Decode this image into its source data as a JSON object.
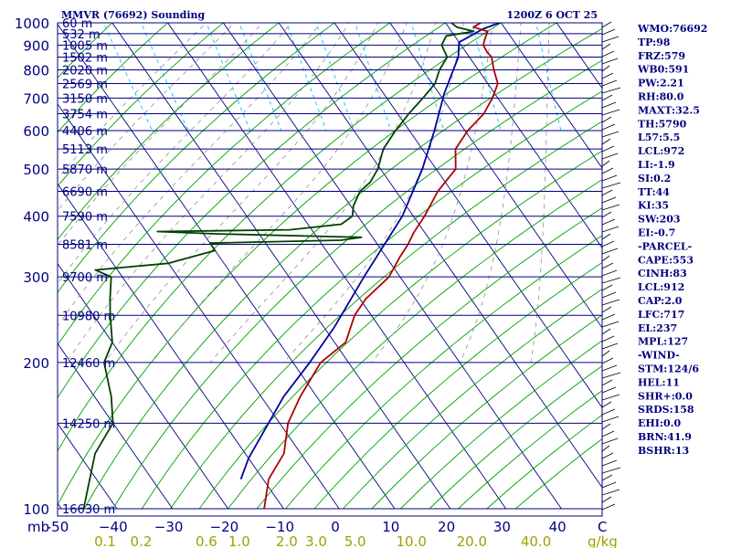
{
  "header": {
    "station": "MMVR (76692) Sounding",
    "time": "1200Z  6 OCT 25"
  },
  "indices": [
    "WMO:76692",
    "TP:98",
    "FRZ:579",
    "WB0:591",
    "PW:2.21",
    "RH:80.0",
    "MAXT:32.5",
    "TH:5790",
    "L57:5.5",
    "LCL:972",
    "LI:-1.9",
    "SI:0.2",
    "TT:44",
    "KI:35",
    "SW:203",
    "EI:-0.7",
    "-PARCEL-",
    "CAPE:553",
    "CINH:83",
    "LCL:912",
    "CAP:2.0",
    "LFC:717",
    "EL:237",
    "MPL:127",
    "-WIND-",
    "STM:124/6",
    "HEL:11",
    "SHR+:0.0",
    "SRDS:158",
    "EHI:0.0",
    "BRN:41.9",
    "BSHR:13"
  ],
  "colors": {
    "frame": "#000080",
    "isobar": "#000080",
    "isotherm": "#000080",
    "dry_adiabat": "#00a000",
    "moist_adiabat": "#909090",
    "mixing_ratio": "#00c0ff",
    "temperature": "#b00000",
    "dewpoint": "#004000",
    "parcel": "#0000a0",
    "mixing_label": "#a0a000"
  },
  "chart_data": {
    "type": "line",
    "diagram": "skew-t log-p",
    "y_axis": {
      "scale": "log",
      "range": [
        1000,
        100
      ],
      "ticks": [
        1000,
        900,
        800,
        700,
        600,
        500,
        400,
        300,
        200,
        100
      ]
    },
    "x_axis": {
      "unit_label": "mb",
      "right_label": "C",
      "range": [
        -50,
        40
      ],
      "tick_labels": [
        "-50",
        "−40",
        "−30",
        "−20",
        "−10",
        "0",
        "10",
        "20",
        "30",
        "40"
      ]
    },
    "mixing_ratio_axis": {
      "unit_label": "g/kg",
      "values": [
        0.1,
        0.2,
        0.6,
        1.0,
        2.0,
        3.0,
        5.0,
        10.0,
        20.0,
        40.0
      ],
      "labels": [
        "0.1",
        "0.2",
        "0.6",
        "1.0",
        "2.0",
        "3.0",
        "5.0",
        "10.0",
        "20.0",
        "40.0"
      ]
    },
    "height_labels": [
      {
        "p": 100,
        "label": "16630 m"
      },
      {
        "p": 150,
        "label": "14250 m"
      },
      {
        "p": 200,
        "label": "12460 m"
      },
      {
        "p": 250,
        "label": "10980 m"
      },
      {
        "p": 300,
        "label": "9700 m"
      },
      {
        "p": 350,
        "label": "8581 m"
      },
      {
        "p": 400,
        "label": "7590 m"
      },
      {
        "p": 450,
        "label": "6690 m"
      },
      {
        "p": 500,
        "label": "5870 m"
      },
      {
        "p": 550,
        "label": "5113 m"
      },
      {
        "p": 600,
        "label": "4406 m"
      },
      {
        "p": 650,
        "label": "3754 m"
      },
      {
        "p": 700,
        "label": "3150 m"
      },
      {
        "p": 750,
        "label": "2569 m"
      },
      {
        "p": 800,
        "label": "2020 m"
      },
      {
        "p": 850,
        "label": "1502 m"
      },
      {
        "p": 900,
        "label": "1005 m"
      },
      {
        "p": 950,
        "label": "532 m"
      },
      {
        "p": 1000,
        "label": "60 m"
      }
    ],
    "temperature": [
      [
        1002,
        26.5
      ],
      [
        980,
        24.5
      ],
      [
        960,
        26.5
      ],
      [
        925,
        25.0
      ],
      [
        900,
        24.0
      ],
      [
        870,
        23.8
      ],
      [
        850,
        24.0
      ],
      [
        800,
        22.8
      ],
      [
        750,
        21.8
      ],
      [
        700,
        19.0
      ],
      [
        650,
        15.5
      ],
      [
        600,
        10.5
      ],
      [
        550,
        6.0
      ],
      [
        500,
        3.5
      ],
      [
        450,
        -2.5
      ],
      [
        400,
        -8.0
      ],
      [
        370,
        -12.0
      ],
      [
        350,
        -14.5
      ],
      [
        330,
        -17.5
      ],
      [
        300,
        -22.0
      ],
      [
        270,
        -29.0
      ],
      [
        250,
        -33.0
      ],
      [
        220,
        -38.0
      ],
      [
        200,
        -45.0
      ],
      [
        170,
        -53.0
      ],
      [
        150,
        -58.5
      ],
      [
        130,
        -63.0
      ],
      [
        115,
        -69.0
      ],
      [
        100,
        -73.5
      ]
    ],
    "dewpoint": [
      [
        1002,
        21.0
      ],
      [
        980,
        21.5
      ],
      [
        960,
        24.0
      ],
      [
        940,
        18.5
      ],
      [
        900,
        16.5
      ],
      [
        850,
        16.0
      ],
      [
        800,
        13.0
      ],
      [
        750,
        10.5
      ],
      [
        700,
        6.5
      ],
      [
        650,
        2.0
      ],
      [
        600,
        -2.5
      ],
      [
        550,
        -7.0
      ],
      [
        500,
        -10.5
      ],
      [
        470,
        -13.5
      ],
      [
        450,
        -16.5
      ],
      [
        420,
        -19.5
      ],
      [
        400,
        -21.0
      ],
      [
        385,
        -24.0
      ],
      [
        375,
        -34.0
      ],
      [
        372,
        -58.0
      ],
      [
        368,
        -48.0
      ],
      [
        362,
        -22.0
      ],
      [
        357,
        -26.0
      ],
      [
        352,
        -50.0
      ],
      [
        340,
        -50.0
      ],
      [
        320,
        -60.0
      ],
      [
        310,
        -74.0
      ],
      [
        300,
        -72.0
      ],
      [
        270,
        -75.0
      ],
      [
        250,
        -77.0
      ],
      [
        220,
        -80.0
      ],
      [
        200,
        -84.0
      ],
      [
        170,
        -87.0
      ],
      [
        150,
        -90.0
      ],
      [
        130,
        -97.0
      ],
      [
        100,
        -106.0
      ]
    ],
    "parcel": [
      [
        1002,
        30.0
      ],
      [
        972,
        26.0
      ],
      [
        912,
        20.0
      ],
      [
        850,
        18.0
      ],
      [
        800,
        15.5
      ],
      [
        717,
        11.0
      ],
      [
        600,
        4.5
      ],
      [
        500,
        -2.5
      ],
      [
        400,
        -12.0
      ],
      [
        300,
        -26.5
      ],
      [
        237,
        -38.0
      ],
      [
        200,
        -47.0
      ],
      [
        170,
        -56.0
      ],
      [
        150,
        -62.0
      ],
      [
        127,
        -70.0
      ],
      [
        115,
        -74.0
      ]
    ]
  }
}
